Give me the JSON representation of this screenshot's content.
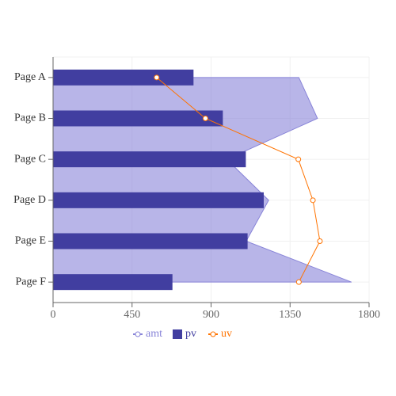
{
  "chart_data": {
    "type": "composed",
    "layout": "vertical",
    "categories": [
      "Page A",
      "Page B",
      "Page C",
      "Page D",
      "Page E",
      "Page F"
    ],
    "series": [
      {
        "name": "amt",
        "type": "area",
        "color": "#8884d8",
        "values": [
          1400,
          1506,
          989,
          1228,
          1100,
          1700
        ]
      },
      {
        "name": "pv",
        "type": "bar",
        "color": "#413ea0",
        "values": [
          800,
          967,
          1098,
          1200,
          1108,
          680
        ]
      },
      {
        "name": "uv",
        "type": "line",
        "color": "#ff7300",
        "values": [
          590,
          868,
          1397,
          1480,
          1520,
          1400
        ]
      }
    ],
    "xlim": [
      0,
      1800
    ],
    "xticks": [
      0,
      450,
      900,
      1350,
      1800
    ],
    "grid": true,
    "legend": "bottom"
  }
}
